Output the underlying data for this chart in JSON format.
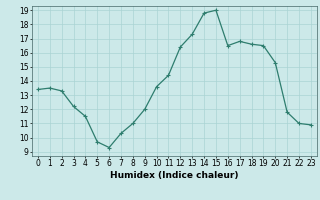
{
  "x": [
    0,
    1,
    2,
    3,
    4,
    5,
    6,
    7,
    8,
    9,
    10,
    11,
    12,
    13,
    14,
    15,
    16,
    17,
    18,
    19,
    20,
    21,
    22,
    23
  ],
  "y": [
    13.4,
    13.5,
    13.3,
    12.2,
    11.5,
    9.7,
    9.3,
    10.3,
    11.0,
    12.0,
    13.6,
    14.4,
    16.4,
    17.3,
    18.8,
    19.0,
    16.5,
    16.8,
    16.6,
    16.5,
    15.3,
    11.8,
    11.0,
    10.9
  ],
  "line_color": "#2e7d6e",
  "marker": "+",
  "marker_size": 3,
  "marker_lw": 0.8,
  "bg_color": "#cce9e9",
  "grid_color": "#aad4d4",
  "xlabel": "Humidex (Indice chaleur)",
  "ylim": [
    9,
    19
  ],
  "xlim": [
    -0.5,
    23.5
  ],
  "yticks": [
    9,
    10,
    11,
    12,
    13,
    14,
    15,
    16,
    17,
    18,
    19
  ],
  "xticks": [
    0,
    1,
    2,
    3,
    4,
    5,
    6,
    7,
    8,
    9,
    10,
    11,
    12,
    13,
    14,
    15,
    16,
    17,
    18,
    19,
    20,
    21,
    22,
    23
  ],
  "xtick_labels": [
    "0",
    "1",
    "2",
    "3",
    "4",
    "5",
    "6",
    "7",
    "8",
    "9",
    "10",
    "11",
    "12",
    "13",
    "14",
    "15",
    "16",
    "17",
    "18",
    "19",
    "20",
    "21",
    "22",
    "23"
  ],
  "label_fontsize": 6.5,
  "tick_fontsize": 5.5,
  "line_width": 0.9
}
